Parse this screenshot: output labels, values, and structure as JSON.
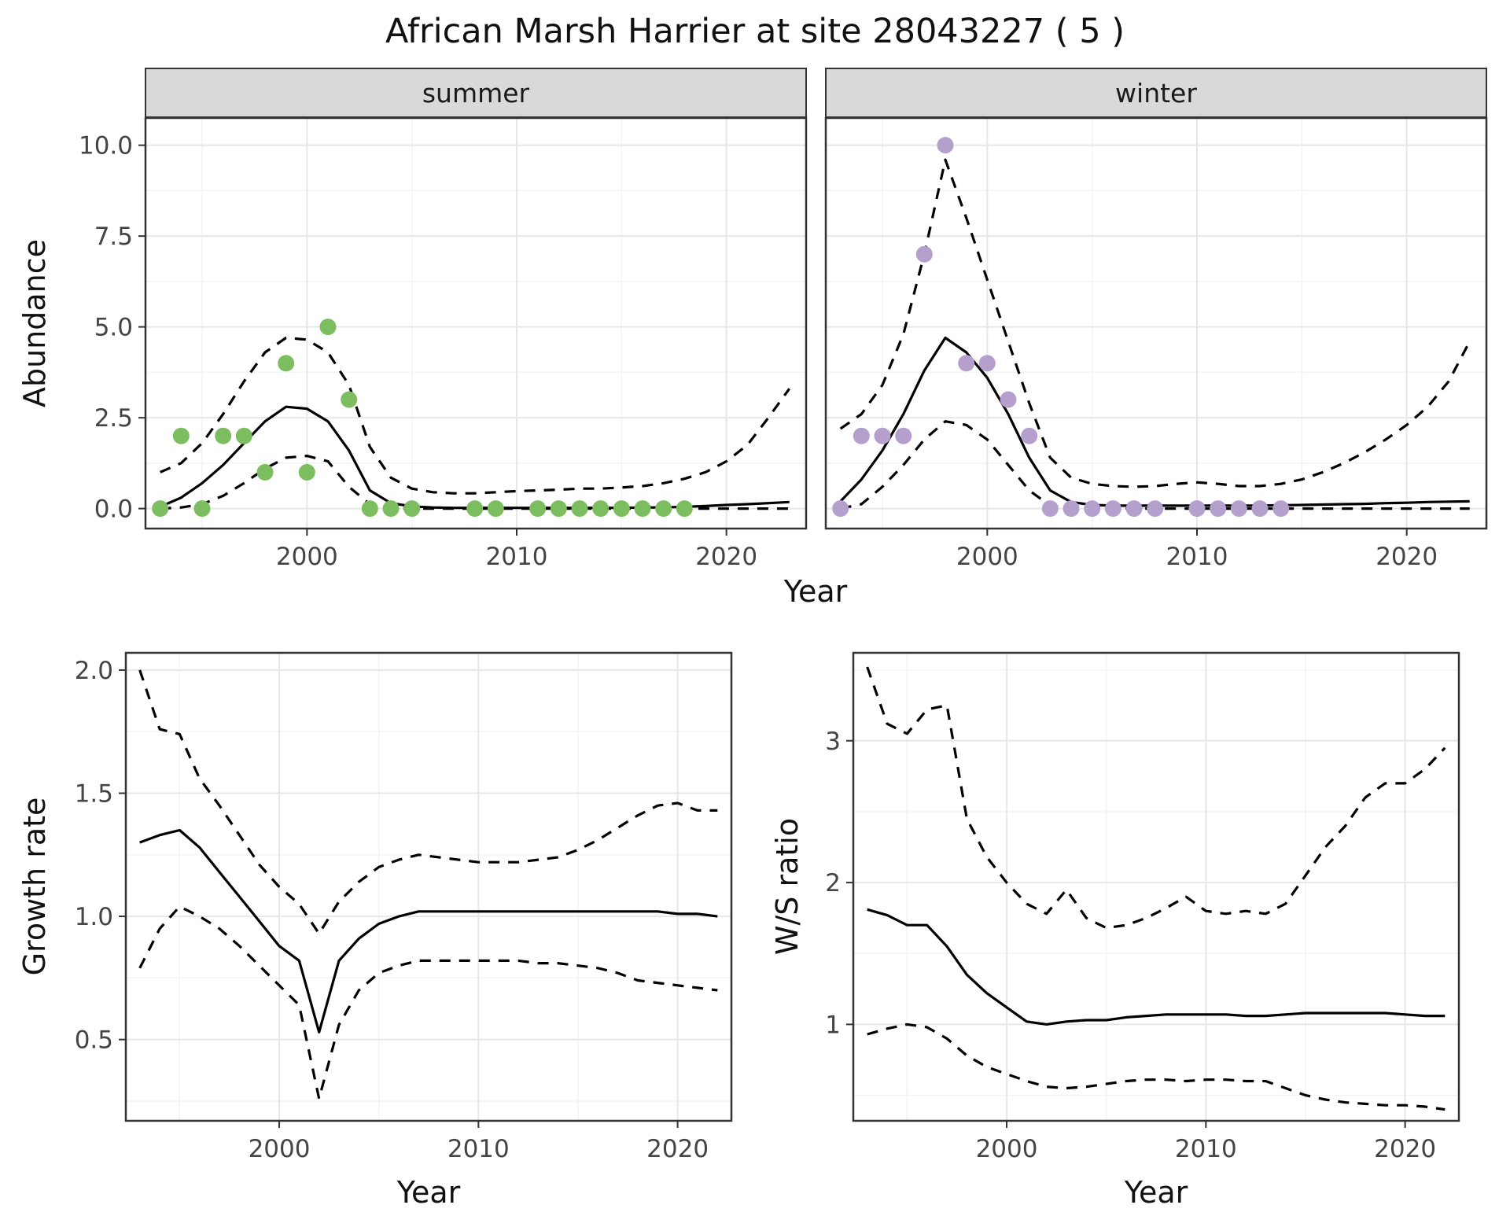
{
  "title": "African Marsh Harrier at site 28043227 ( 5 )",
  "facet_labels": {
    "summer": "summer",
    "winter": "winter"
  },
  "axis_labels": {
    "abundance": "Abundance",
    "year_top": "Year",
    "growth": "Growth rate",
    "ws": "W/S ratio",
    "year_growth": "Year",
    "year_ws": "Year"
  },
  "colors": {
    "summer_points": "#7CBD5F",
    "winter_points": "#B59FCC",
    "line": "#000000",
    "strip_bg": "#D9D9D9"
  },
  "chart_data": [
    {
      "id": "abundance-summer",
      "type": "line",
      "facet": "summer",
      "xlabel": "Year",
      "ylabel": "Abundance",
      "xlim": [
        1992.3,
        2023.8
      ],
      "ylim": [
        -0.55,
        10.75
      ],
      "xticks": [
        2000,
        2010,
        2020
      ],
      "xtick_labels": [
        "2000",
        "2010",
        "2020"
      ],
      "yticks": [
        0,
        2.5,
        5,
        7.5,
        10
      ],
      "ytick_labels": [
        "0.0",
        "2.5",
        "5.0",
        "7.5",
        "10.0"
      ],
      "y_axis": true,
      "grid": true,
      "years": [
        1993,
        1994,
        1995,
        1996,
        1997,
        1998,
        1999,
        2000,
        2001,
        2002,
        2003,
        2004,
        2005,
        2006,
        2007,
        2008,
        2009,
        2010,
        2011,
        2012,
        2013,
        2014,
        2015,
        2016,
        2017,
        2018,
        2019,
        2020,
        2021,
        2022,
        2023
      ],
      "series": [
        {
          "name": "fitted",
          "style": "solid",
          "color": "#000000",
          "values": [
            0.05,
            0.3,
            0.7,
            1.2,
            1.8,
            2.4,
            2.8,
            2.75,
            2.4,
            1.6,
            0.5,
            0.15,
            0.06,
            0.03,
            0.02,
            0.02,
            0.02,
            0.02,
            0.02,
            0.02,
            0.02,
            0.02,
            0.02,
            0.03,
            0.03,
            0.05,
            0.07,
            0.1,
            0.12,
            0.15,
            0.18
          ]
        },
        {
          "name": "upper-ci",
          "style": "dashed",
          "color": "#000000",
          "values": [
            1.0,
            1.25,
            1.8,
            2.6,
            3.5,
            4.3,
            4.7,
            4.65,
            4.3,
            3.4,
            1.7,
            0.85,
            0.55,
            0.45,
            0.42,
            0.42,
            0.45,
            0.48,
            0.5,
            0.52,
            0.55,
            0.55,
            0.58,
            0.62,
            0.7,
            0.82,
            1.0,
            1.3,
            1.75,
            2.5,
            3.3
          ]
        },
        {
          "name": "lower-ci",
          "style": "dashed",
          "color": "#000000",
          "values": [
            0,
            0.03,
            0.12,
            0.35,
            0.7,
            1.1,
            1.4,
            1.45,
            1.3,
            0.6,
            0.12,
            0.02,
            0,
            0,
            0,
            0,
            0,
            0,
            0,
            0,
            0,
            0,
            0,
            0,
            0,
            0,
            0,
            0,
            0,
            0,
            0
          ]
        }
      ],
      "points": {
        "name": "observed-counts-summer",
        "color": "#7CBD5F",
        "x": [
          1993,
          1994,
          1995,
          1996,
          1997,
          1998,
          1999,
          2000,
          2001,
          2002,
          2003,
          2004,
          2005,
          2008,
          2009,
          2011,
          2012,
          2013,
          2014,
          2015,
          2016,
          2017,
          2018
        ],
        "y": [
          0,
          2,
          0,
          2,
          2,
          1,
          4,
          1,
          5,
          3,
          0,
          0,
          0,
          0,
          0,
          0,
          0,
          0,
          0,
          0,
          0,
          0,
          0
        ]
      }
    },
    {
      "id": "abundance-winter",
      "type": "line",
      "facet": "winter",
      "xlabel": "Year",
      "ylabel": "Abundance",
      "xlim": [
        1992.3,
        2023.8
      ],
      "ylim": [
        -0.55,
        10.75
      ],
      "xticks": [
        2000,
        2010,
        2020
      ],
      "xtick_labels": [
        "2000",
        "2010",
        "2020"
      ],
      "yticks": [
        0,
        2.5,
        5,
        7.5,
        10
      ],
      "ytick_labels": [
        "0.0",
        "2.5",
        "5.0",
        "7.5",
        "10.0"
      ],
      "y_axis": false,
      "grid": true,
      "years": [
        1993,
        1994,
        1995,
        1996,
        1997,
        1998,
        1999,
        2000,
        2001,
        2002,
        2003,
        2004,
        2005,
        2006,
        2007,
        2008,
        2009,
        2010,
        2011,
        2012,
        2013,
        2014,
        2015,
        2016,
        2017,
        2018,
        2019,
        2020,
        2021,
        2022,
        2023
      ],
      "series": [
        {
          "name": "fitted",
          "style": "solid",
          "color": "#000000",
          "values": [
            0.2,
            0.8,
            1.6,
            2.6,
            3.8,
            4.7,
            4.3,
            3.6,
            2.6,
            1.4,
            0.5,
            0.18,
            0.1,
            0.08,
            0.08,
            0.08,
            0.08,
            0.08,
            0.08,
            0.08,
            0.08,
            0.09,
            0.1,
            0.11,
            0.12,
            0.13,
            0.15,
            0.16,
            0.18,
            0.19,
            0.2
          ]
        },
        {
          "name": "upper-ci",
          "style": "dashed",
          "color": "#000000",
          "values": [
            2.2,
            2.6,
            3.4,
            4.8,
            7.0,
            9.6,
            8.0,
            6.3,
            4.6,
            2.9,
            1.4,
            0.85,
            0.68,
            0.62,
            0.6,
            0.62,
            0.68,
            0.72,
            0.68,
            0.62,
            0.62,
            0.68,
            0.8,
            1.0,
            1.25,
            1.55,
            1.9,
            2.3,
            2.8,
            3.5,
            4.6
          ]
        },
        {
          "name": "lower-ci",
          "style": "dashed",
          "color": "#000000",
          "values": [
            0,
            0.12,
            0.6,
            1.2,
            1.9,
            2.4,
            2.3,
            1.9,
            1.2,
            0.5,
            0.08,
            0,
            0,
            0,
            0,
            0,
            0,
            0,
            0,
            0,
            0,
            0,
            0,
            0,
            0,
            0,
            0,
            0,
            0,
            0,
            0
          ]
        }
      ],
      "points": {
        "name": "observed-counts-winter",
        "color": "#B59FCC",
        "x": [
          1993,
          1994,
          1995,
          1996,
          1997,
          1998,
          1999,
          2000,
          2001,
          2002,
          2003,
          2004,
          2005,
          2006,
          2007,
          2008,
          2010,
          2011,
          2012,
          2013,
          2014
        ],
        "y": [
          0,
          2,
          2,
          2,
          7,
          10,
          4,
          4,
          3,
          2,
          0,
          0,
          0,
          0,
          0,
          0,
          0,
          0,
          0,
          0,
          0
        ]
      }
    },
    {
      "id": "growth-rate",
      "type": "line",
      "xlabel": "Year",
      "ylabel": "Growth rate",
      "xlim": [
        1992.3,
        2022.7
      ],
      "ylim": [
        0.17,
        2.07
      ],
      "xticks": [
        2000,
        2010,
        2020
      ],
      "xtick_labels": [
        "2000",
        "2010",
        "2020"
      ],
      "yticks": [
        0.5,
        1.0,
        1.5,
        2.0
      ],
      "ytick_labels": [
        "0.5",
        "1.0",
        "1.5",
        "2.0"
      ],
      "y_axis": true,
      "grid": true,
      "years": [
        1993,
        1994,
        1995,
        1996,
        1997,
        1998,
        1999,
        2000,
        2001,
        2002,
        2003,
        2004,
        2005,
        2006,
        2007,
        2008,
        2009,
        2010,
        2011,
        2012,
        2013,
        2014,
        2015,
        2016,
        2017,
        2018,
        2019,
        2020,
        2021,
        2022
      ],
      "series": [
        {
          "name": "fitted",
          "style": "solid",
          "color": "#000000",
          "values": [
            1.3,
            1.33,
            1.35,
            1.28,
            1.18,
            1.08,
            0.98,
            0.88,
            0.82,
            0.53,
            0.82,
            0.91,
            0.97,
            1.0,
            1.02,
            1.02,
            1.02,
            1.02,
            1.02,
            1.02,
            1.02,
            1.02,
            1.02,
            1.02,
            1.02,
            1.02,
            1.02,
            1.01,
            1.01,
            1.0
          ]
        },
        {
          "name": "upper-ci",
          "style": "dashed",
          "color": "#000000",
          "values": [
            2.0,
            1.76,
            1.74,
            1.56,
            1.45,
            1.33,
            1.21,
            1.12,
            1.05,
            0.93,
            1.06,
            1.14,
            1.2,
            1.23,
            1.25,
            1.24,
            1.23,
            1.22,
            1.22,
            1.22,
            1.23,
            1.24,
            1.27,
            1.31,
            1.36,
            1.41,
            1.45,
            1.46,
            1.43,
            1.43
          ]
        },
        {
          "name": "lower-ci",
          "style": "dashed",
          "color": "#000000",
          "values": [
            0.79,
            0.95,
            1.04,
            1.0,
            0.95,
            0.88,
            0.8,
            0.72,
            0.64,
            0.26,
            0.56,
            0.7,
            0.77,
            0.8,
            0.82,
            0.82,
            0.82,
            0.82,
            0.82,
            0.82,
            0.81,
            0.81,
            0.8,
            0.79,
            0.77,
            0.74,
            0.73,
            0.72,
            0.71,
            0.7
          ]
        }
      ]
    },
    {
      "id": "ws-ratio",
      "type": "line",
      "xlabel": "Year",
      "ylabel": "W/S ratio",
      "xlim": [
        1992.3,
        2022.7
      ],
      "ylim": [
        0.32,
        3.62
      ],
      "xticks": [
        2000,
        2010,
        2020
      ],
      "xtick_labels": [
        "2000",
        "2010",
        "2020"
      ],
      "yticks": [
        1,
        2,
        3
      ],
      "ytick_labels": [
        "1",
        "2",
        "3"
      ],
      "y_axis": true,
      "grid": true,
      "years": [
        1993,
        1994,
        1995,
        1996,
        1997,
        1998,
        1999,
        2000,
        2001,
        2002,
        2003,
        2004,
        2005,
        2006,
        2007,
        2008,
        2009,
        2010,
        2011,
        2012,
        2013,
        2014,
        2015,
        2016,
        2017,
        2018,
        2019,
        2020,
        2021,
        2022
      ],
      "series": [
        {
          "name": "fitted",
          "style": "solid",
          "color": "#000000",
          "values": [
            1.81,
            1.77,
            1.7,
            1.7,
            1.55,
            1.35,
            1.22,
            1.12,
            1.02,
            1.0,
            1.02,
            1.03,
            1.03,
            1.05,
            1.06,
            1.07,
            1.07,
            1.07,
            1.07,
            1.06,
            1.06,
            1.07,
            1.08,
            1.08,
            1.08,
            1.08,
            1.08,
            1.07,
            1.06,
            1.06
          ]
        },
        {
          "name": "upper-ci",
          "style": "dashed",
          "color": "#000000",
          "values": [
            3.52,
            3.12,
            3.05,
            3.22,
            3.25,
            2.45,
            2.18,
            2.0,
            1.85,
            1.78,
            1.95,
            1.75,
            1.68,
            1.7,
            1.75,
            1.82,
            1.9,
            1.8,
            1.78,
            1.8,
            1.78,
            1.85,
            2.05,
            2.25,
            2.4,
            2.6,
            2.7,
            2.7,
            2.8,
            2.95
          ]
        },
        {
          "name": "lower-ci",
          "style": "dashed",
          "color": "#000000",
          "values": [
            0.93,
            0.97,
            1.0,
            0.98,
            0.9,
            0.78,
            0.7,
            0.65,
            0.6,
            0.56,
            0.55,
            0.56,
            0.58,
            0.6,
            0.61,
            0.61,
            0.6,
            0.61,
            0.61,
            0.6,
            0.6,
            0.55,
            0.5,
            0.47,
            0.45,
            0.44,
            0.43,
            0.43,
            0.42,
            0.4
          ]
        }
      ]
    }
  ]
}
